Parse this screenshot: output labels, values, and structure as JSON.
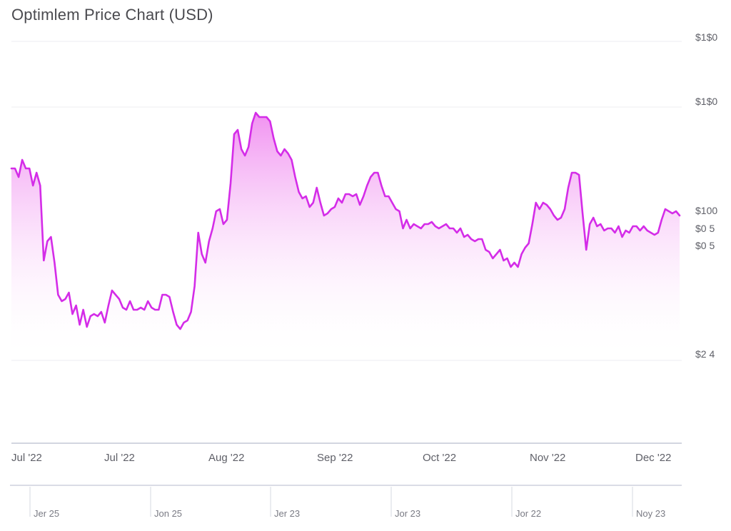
{
  "title": "Optimlem Price Chart (USD)",
  "colors": {
    "line": "#d42ce8",
    "fill_top": "#f08cf0",
    "fill_bottom": "#ffffff",
    "grid": "#eeeef2",
    "axis": "#c3c8d6",
    "text": "#5f6068"
  },
  "chart_data": {
    "type": "area",
    "title": "Optimlem Price Chart (USD)",
    "xlabel": "",
    "ylabel": "",
    "x_start": "2022-06-15",
    "x_end": "2022-12-20",
    "legend": "none",
    "grid": "horizontal",
    "y_tick_labels": [
      "$1$0",
      "$1$0",
      "$100",
      "$0 5",
      "$0 5",
      "$2 4"
    ],
    "x_tick_labels": [
      "Jul '22",
      "Jul '22",
      "Aug '22",
      "Sep '22",
      "Oct '22",
      "Nov '22",
      "Dec '22"
    ],
    "navigator_labels": [
      "Jer 25",
      "Jon 25",
      "Jer 23",
      "Jor 23",
      "Jor 22",
      "Noy 23"
    ],
    "series": [
      {
        "values": [
          82,
          82,
          78,
          86,
          82,
          82,
          74,
          80,
          74,
          39,
          48,
          50,
          38,
          23,
          20,
          21,
          24,
          14,
          18,
          9,
          16,
          8,
          13,
          14,
          13,
          15,
          10,
          18,
          25,
          23,
          21,
          17,
          16,
          20,
          16,
          16,
          17,
          16,
          20,
          17,
          16,
          16,
          23,
          23,
          22,
          15,
          9,
          7,
          10,
          11,
          15,
          27,
          52,
          42,
          38,
          48,
          54,
          62,
          63,
          56,
          58,
          75,
          98,
          100,
          91,
          88,
          92,
          103,
          108,
          106,
          106,
          106,
          104,
          96,
          90,
          88,
          91,
          89,
          86,
          78,
          71,
          68,
          69,
          64,
          66,
          73,
          66,
          60,
          61,
          63,
          64,
          68,
          66,
          70,
          70,
          69,
          70,
          65,
          69,
          74,
          78,
          80,
          80,
          74,
          69,
          69,
          66,
          63,
          62,
          54,
          58,
          54,
          56,
          55,
          54,
          56,
          56,
          57,
          55,
          54,
          55,
          56,
          54,
          54,
          52,
          54,
          50,
          51,
          49,
          48,
          49,
          49,
          44,
          43,
          40,
          42,
          44,
          39,
          40,
          36,
          38,
          36,
          42,
          45,
          47,
          56,
          66,
          63,
          66,
          65,
          63,
          60,
          58,
          59,
          63,
          73,
          80,
          80,
          79,
          61,
          44,
          56,
          59,
          55,
          56,
          53,
          54,
          54,
          52,
          55,
          50,
          53,
          52,
          55,
          55,
          53,
          55,
          53,
          52,
          51,
          52,
          58,
          63,
          62,
          61,
          62,
          60
        ]
      }
    ]
  }
}
